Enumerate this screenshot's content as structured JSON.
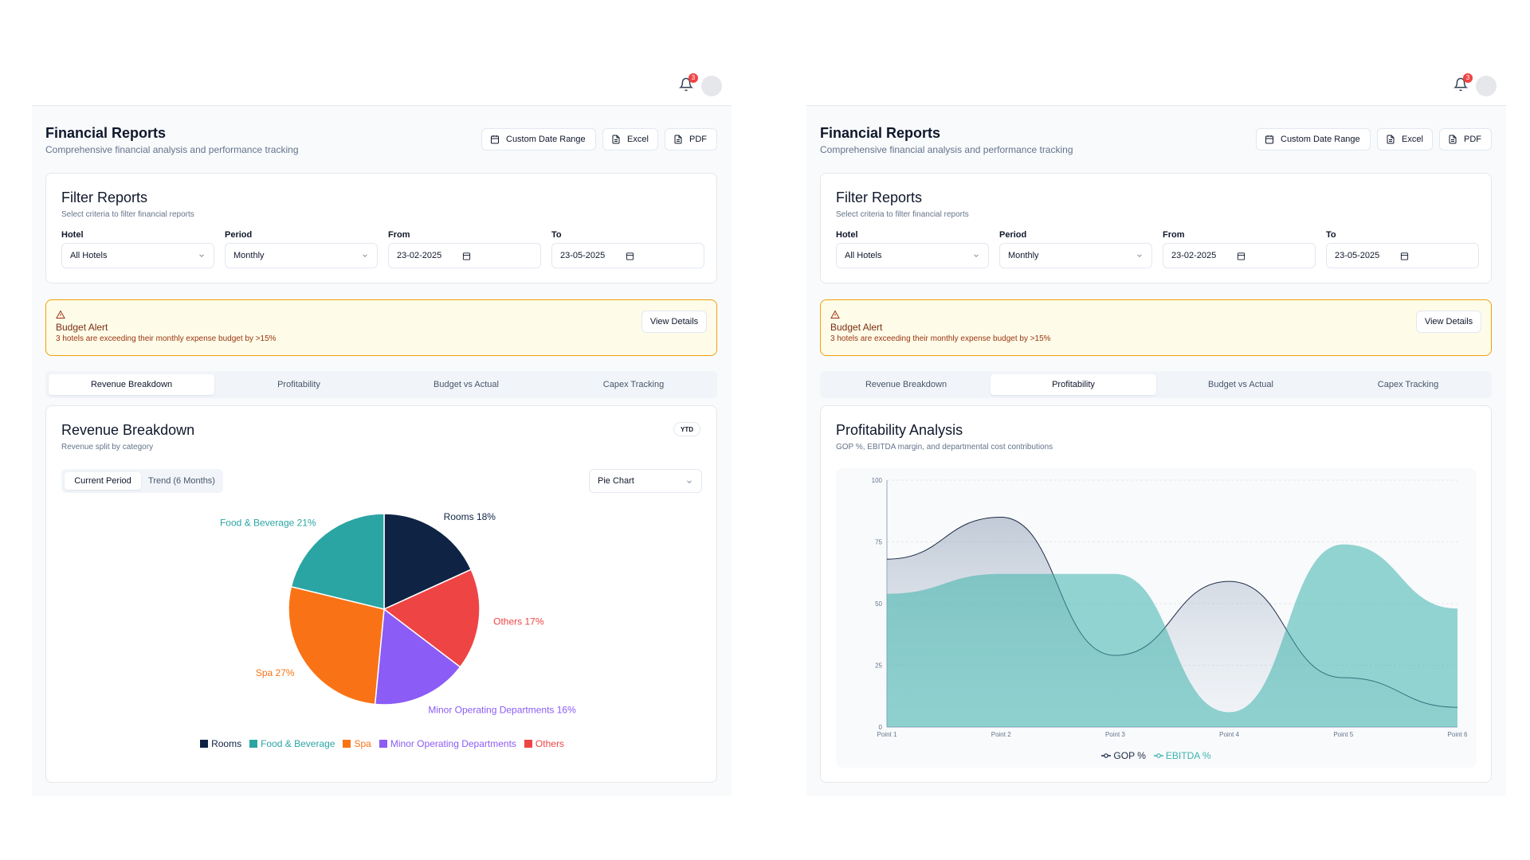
{
  "header": {
    "notification_count": "3"
  },
  "page": {
    "title": "Financial Reports",
    "subtitle": "Comprehensive financial analysis and performance tracking",
    "buttons": {
      "date_range": "Custom Date Range",
      "excel": "Excel",
      "pdf": "PDF"
    }
  },
  "filters": {
    "title": "Filter Reports",
    "subtitle": "Select criteria to filter financial reports",
    "hotel_label": "Hotel",
    "hotel_value": "All Hotels",
    "period_label": "Period",
    "period_value": "Monthly",
    "from_label": "From",
    "from_value": "23-02-2025",
    "to_label": "To",
    "to_value": "23-05-2025"
  },
  "alert": {
    "title": "Budget Alert",
    "text": "3 hotels are exceeding their monthly expense budget by >15%",
    "button": "View Details"
  },
  "tabs": [
    "Revenue Breakdown",
    "Profitability",
    "Budget vs Actual",
    "Capex Tracking"
  ],
  "revenue": {
    "title": "Revenue Breakdown",
    "subtitle": "Revenue split by category",
    "badge": "YTD",
    "seg_current": "Current Period",
    "seg_trend": "Trend (6 Months)",
    "chart_select": "Pie Chart"
  },
  "profitability": {
    "title": "Profitability Analysis",
    "subtitle": "GOP %, EBITDA margin, and departmental cost contributions"
  },
  "colors": {
    "rooms": "#0f2444",
    "fnb": "#2aa5a3",
    "spa": "#f97316",
    "minor": "#8b5cf6",
    "others": "#ef4444",
    "gop": "#1e2a44",
    "ebitda": "#3db3ac"
  },
  "chart_data": [
    {
      "type": "pie",
      "title": "Revenue Breakdown",
      "slices": [
        {
          "name": "Rooms",
          "value": 18,
          "label": "Rooms 18%"
        },
        {
          "name": "Others",
          "value": 17,
          "label": "Others 17%"
        },
        {
          "name": "Minor Operating Departments",
          "value": 16,
          "label": "Minor Operating Departments 16%"
        },
        {
          "name": "Spa",
          "value": 27,
          "label": "Spa 27%"
        },
        {
          "name": "Food & Beverage",
          "value": 21,
          "label": "Food & Beverage 21%"
        }
      ],
      "legend_order": [
        "Rooms",
        "Food & Beverage",
        "Spa",
        "Minor Operating Departments",
        "Others"
      ],
      "legend_placement": "bottom"
    },
    {
      "type": "area",
      "title": "Profitability Analysis",
      "categories": [
        "Point 1",
        "Point 2",
        "Point 3",
        "Point 4",
        "Point 5",
        "Point 6"
      ],
      "series": [
        {
          "name": "GOP %",
          "values": [
            68,
            85,
            29,
            59,
            20,
            8
          ]
        },
        {
          "name": "EBITDA %",
          "values": [
            54,
            62,
            62,
            6,
            74,
            48
          ]
        }
      ],
      "ylim": [
        0,
        100
      ],
      "yticks": [
        0,
        25,
        50,
        75,
        100
      ],
      "grid": true,
      "legend_placement": "bottom"
    }
  ]
}
